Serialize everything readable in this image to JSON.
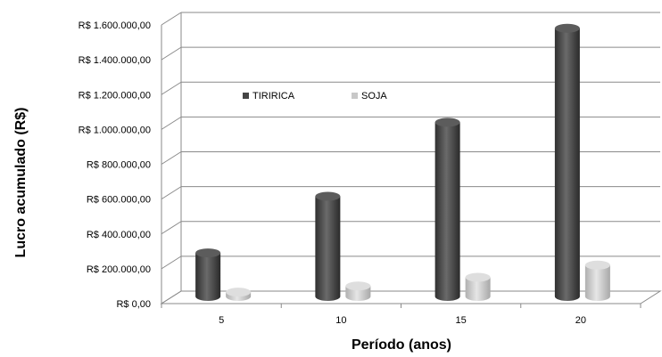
{
  "chart_data": {
    "type": "bar",
    "style": "3d-cylinder",
    "categories": [
      "5",
      "10",
      "15",
      "20"
    ],
    "series": [
      {
        "name": "TIRIRICA",
        "values": [
          250000,
          575000,
          1000000,
          1540000
        ],
        "color": "#454545"
      },
      {
        "name": "SOJA",
        "values": [
          25000,
          60000,
          110000,
          180000
        ],
        "color": "#c8c8c8"
      }
    ],
    "title": "",
    "xlabel": "Período (anos)",
    "ylabel": "Lucro acumulado (R$)",
    "ylim": [
      0,
      1600000
    ],
    "ytick_step": 200000,
    "ytick_labels": [
      "R$ 0,00",
      "R$ 200.000,00",
      "R$ 400.000,00",
      "R$ 600.000,00",
      "R$ 800.000,00",
      "R$ 1.000.000,00",
      "R$ 1.200.000,00",
      "R$ 1.400.000,00",
      "R$ 1.600.000,00"
    ],
    "grid": true,
    "legend": "top-left-inside"
  }
}
